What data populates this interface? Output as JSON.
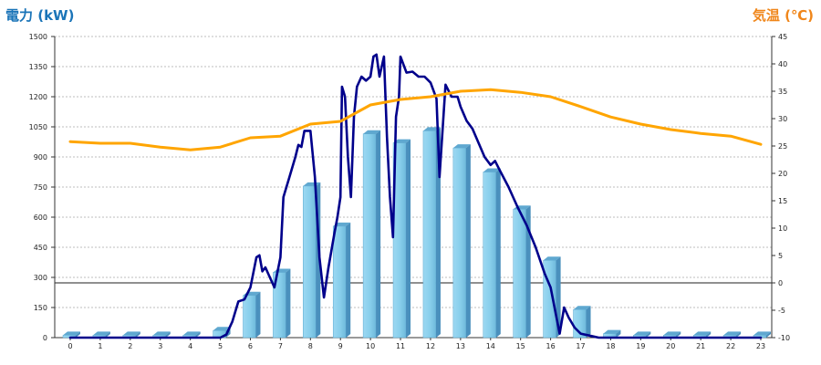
{
  "chart_data": {
    "type": "bar+line",
    "left_axis": {
      "label": "電力 (kW)",
      "color": "#1a74b8",
      "ylim": [
        0,
        1500
      ],
      "ticks": [
        0,
        150,
        300,
        450,
        600,
        750,
        900,
        1050,
        1200,
        1350,
        1500
      ]
    },
    "right_axis": {
      "label": "気温 (℃)",
      "color": "#f0861a",
      "ylim": [
        -10,
        45
      ],
      "ticks": [
        -10,
        -5,
        0,
        5,
        10,
        15,
        20,
        25,
        30,
        35,
        40,
        45
      ]
    },
    "categories": [
      "0",
      "1",
      "2",
      "3",
      "4",
      "5",
      "6",
      "7",
      "8",
      "9",
      "10",
      "11",
      "12",
      "13",
      "14",
      "15",
      "16",
      "17",
      "18",
      "19",
      "20",
      "21",
      "22",
      "23"
    ],
    "grid": true,
    "series": [
      {
        "type": "bar",
        "axis": "left",
        "color": "#87ceeb",
        "values": [
          12,
          12,
          12,
          12,
          12,
          35,
          210,
          325,
          755,
          555,
          1015,
          970,
          1030,
          945,
          825,
          640,
          385,
          140,
          20,
          12,
          12,
          12,
          12,
          12
        ]
      },
      {
        "type": "line",
        "axis": "left",
        "color": "#00008b",
        "points": [
          [
            0,
            0
          ],
          [
            5,
            0
          ],
          [
            5.2,
            15
          ],
          [
            5.4,
            80
          ],
          [
            5.6,
            180
          ],
          [
            5.8,
            190
          ],
          [
            6,
            250
          ],
          [
            6.2,
            400
          ],
          [
            6.3,
            410
          ],
          [
            6.4,
            330
          ],
          [
            6.5,
            350
          ],
          [
            6.8,
            250
          ],
          [
            7,
            400
          ],
          [
            7.1,
            700
          ],
          [
            7.3,
            800
          ],
          [
            7.5,
            900
          ],
          [
            7.6,
            960
          ],
          [
            7.7,
            950
          ],
          [
            7.8,
            1030
          ],
          [
            8,
            1030
          ],
          [
            8.15,
            800
          ],
          [
            8.3,
            400
          ],
          [
            8.45,
            200
          ],
          [
            8.6,
            350
          ],
          [
            8.8,
            520
          ],
          [
            8.9,
            600
          ],
          [
            9,
            700
          ],
          [
            9.05,
            1250
          ],
          [
            9.15,
            1200
          ],
          [
            9.25,
            900
          ],
          [
            9.35,
            700
          ],
          [
            9.45,
            1100
          ],
          [
            9.55,
            1250
          ],
          [
            9.7,
            1300
          ],
          [
            9.85,
            1280
          ],
          [
            10,
            1300
          ],
          [
            10.1,
            1400
          ],
          [
            10.2,
            1410
          ],
          [
            10.3,
            1300
          ],
          [
            10.45,
            1400
          ],
          [
            10.55,
            1000
          ],
          [
            10.65,
            700
          ],
          [
            10.75,
            500
          ],
          [
            10.85,
            1100
          ],
          [
            10.95,
            1200
          ],
          [
            11,
            1400
          ],
          [
            11.2,
            1320
          ],
          [
            11.4,
            1325
          ],
          [
            11.6,
            1300
          ],
          [
            11.8,
            1300
          ],
          [
            12,
            1270
          ],
          [
            12.2,
            1190
          ],
          [
            12.3,
            800
          ],
          [
            12.5,
            1260
          ],
          [
            12.7,
            1200
          ],
          [
            12.9,
            1200
          ],
          [
            13,
            1150
          ],
          [
            13.2,
            1080
          ],
          [
            13.4,
            1040
          ],
          [
            13.6,
            970
          ],
          [
            13.8,
            900
          ],
          [
            14,
            860
          ],
          [
            14.15,
            880
          ],
          [
            14.3,
            835
          ],
          [
            14.6,
            750
          ],
          [
            14.9,
            650
          ],
          [
            15.2,
            560
          ],
          [
            15.5,
            450
          ],
          [
            15.8,
            320
          ],
          [
            16,
            250
          ],
          [
            16.3,
            20
          ],
          [
            16.45,
            150
          ],
          [
            16.6,
            100
          ],
          [
            16.8,
            50
          ],
          [
            17,
            20
          ],
          [
            17.3,
            10
          ],
          [
            17.6,
            0
          ],
          [
            23,
            0
          ]
        ]
      },
      {
        "type": "line",
        "axis": "right",
        "color": "#ffa500",
        "points": [
          [
            0,
            25.8
          ],
          [
            1,
            25.5
          ],
          [
            2,
            25.5
          ],
          [
            3,
            24.8
          ],
          [
            4,
            24.3
          ],
          [
            5,
            24.8
          ],
          [
            6,
            26.5
          ],
          [
            7,
            26.8
          ],
          [
            8,
            29
          ],
          [
            9,
            29.5
          ],
          [
            10,
            32.5
          ],
          [
            11,
            33.5
          ],
          [
            12,
            34
          ],
          [
            13,
            35
          ],
          [
            14,
            35.3
          ],
          [
            15,
            34.8
          ],
          [
            16,
            34
          ],
          [
            17,
            32.2
          ],
          [
            18,
            30.3
          ],
          [
            19,
            29
          ],
          [
            20,
            28
          ],
          [
            21,
            27.3
          ],
          [
            22,
            26.8
          ],
          [
            23,
            25.3
          ]
        ]
      }
    ]
  }
}
